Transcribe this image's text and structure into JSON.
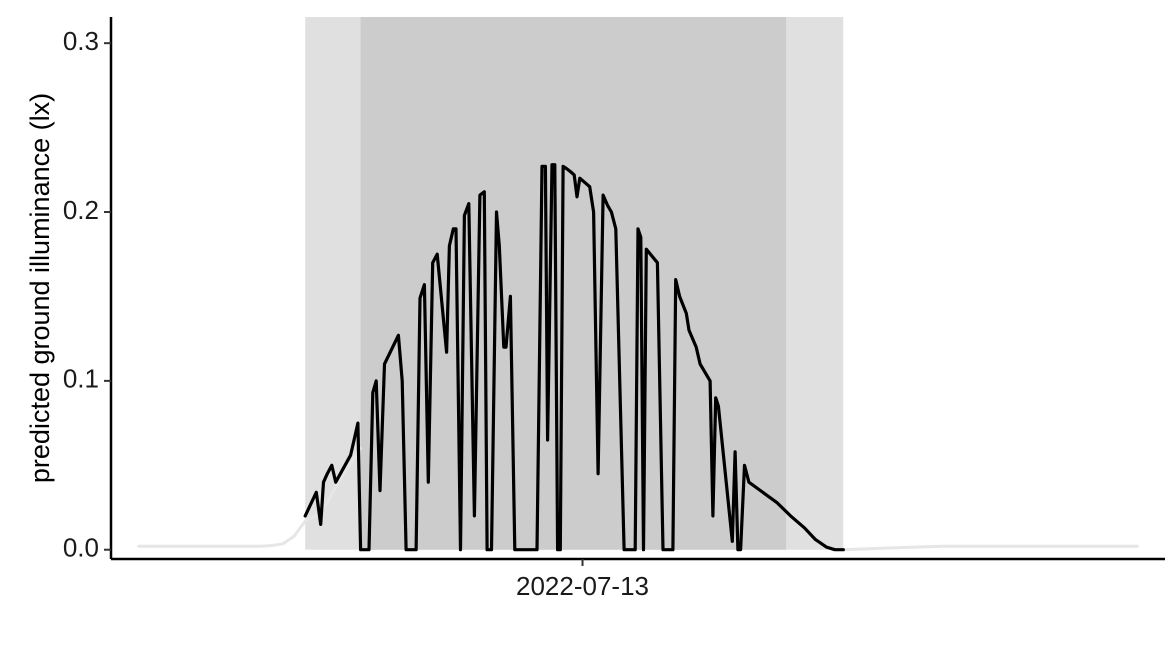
{
  "chart_data": {
    "type": "line",
    "title": "",
    "xlabel": "",
    "ylabel": "predicted ground illuminance (lx)",
    "xlim": [
      3.5,
      22.5
    ],
    "ylim": [
      -0.0055,
      0.3155
    ],
    "y_ticks": [
      0.0,
      0.1,
      0.2,
      0.3
    ],
    "y_tick_labels": [
      "0.0",
      "0.1",
      "0.2",
      "0.3"
    ],
    "x_ticks": [
      12.0
    ],
    "x_tick_labels": [
      "2022-07-13"
    ],
    "x_unit": "hour of day",
    "grid": false,
    "legend": "none",
    "colors": {
      "night_band": "#e0e0e0",
      "deep_night_band": "#cccccc",
      "main_series": "#000000",
      "outer_series": "#e6e6e6"
    },
    "shaded_regions": [
      {
        "name": "twilight",
        "x_start": 7.0,
        "x_end": 16.7
      },
      {
        "name": "night",
        "x_start": 8.0,
        "x_end": 15.67
      }
    ],
    "series": [
      {
        "name": "",
        "style": "light",
        "x": [
          4.0,
          5.0,
          6.0,
          6.2,
          6.4,
          6.6,
          6.8,
          7.0,
          7.2,
          7.4,
          7.6,
          7.8,
          8.0
        ],
        "values": [
          0.002,
          0.002,
          0.002,
          0.002,
          0.0025,
          0.0035,
          0.008,
          0.017,
          0.02,
          0.028,
          0.04,
          0.05,
          0.06
        ]
      },
      {
        "name": "",
        "style": "light",
        "x": [
          16.7,
          17.5,
          18.5,
          19.5,
          20.5,
          21.5,
          22.0
        ],
        "values": [
          0.0,
          0.001,
          0.002,
          0.002,
          0.002,
          0.002,
          0.002
        ]
      },
      {
        "name": "",
        "style": "main",
        "x": [
          7.0,
          7.2,
          7.28,
          7.33,
          7.4,
          7.48,
          7.55,
          7.82,
          7.95,
          8.0,
          8.07,
          8.15,
          8.22,
          8.28,
          8.35,
          8.43,
          8.68,
          8.75,
          8.82,
          8.88,
          9.0,
          9.07,
          9.15,
          9.22,
          9.3,
          9.38,
          9.55,
          9.6,
          9.67,
          9.72,
          9.8,
          9.87,
          9.95,
          10.05,
          10.15,
          10.23,
          10.28,
          10.36,
          10.45,
          10.5,
          10.58,
          10.62,
          10.7,
          10.78,
          10.83,
          10.88,
          10.92,
          10.97,
          11.05,
          11.13,
          11.18,
          11.27,
          11.33,
          11.37,
          11.45,
          11.5,
          11.55,
          11.6,
          11.65,
          11.7,
          11.78,
          11.85,
          11.9,
          11.95,
          12.13,
          12.2,
          12.28,
          12.37,
          12.45,
          12.52,
          12.6,
          12.75,
          12.95,
          13.0,
          13.05,
          13.1,
          13.15,
          13.35,
          13.45,
          13.52,
          13.58,
          13.63,
          13.68,
          13.75,
          13.87,
          13.92,
          14.05,
          14.12,
          14.3,
          14.35,
          14.4,
          14.45,
          14.7,
          14.75,
          14.8,
          14.85,
          14.92,
          15.0,
          15.07,
          15.12,
          15.18,
          15.3,
          15.37,
          15.45,
          15.5,
          15.58,
          15.68,
          15.75,
          15.8,
          15.9,
          16.0,
          16.2,
          16.4,
          16.55,
          16.65,
          16.7
        ],
        "values": [
          0.02,
          0.034,
          0.015,
          0.04,
          0.045,
          0.05,
          0.04,
          0.056,
          0.075,
          0.0,
          0.0,
          0.0,
          0.093,
          0.1,
          0.035,
          0.11,
          0.127,
          0.1,
          0.0,
          0.0,
          0.0,
          0.149,
          0.157,
          0.04,
          0.17,
          0.175,
          0.117,
          0.18,
          0.19,
          0.19,
          0.0,
          0.198,
          0.205,
          0.02,
          0.21,
          0.212,
          0.0,
          0.0,
          0.2,
          0.18,
          0.12,
          0.12,
          0.15,
          0.0,
          0.0,
          0.0,
          0.0,
          0.0,
          0.0,
          0.0,
          0.0,
          0.227,
          0.227,
          0.065,
          0.228,
          0.228,
          0.0,
          0.0,
          0.227,
          0.226,
          0.224,
          0.222,
          0.209,
          0.22,
          0.215,
          0.2,
          0.045,
          0.21,
          0.204,
          0.2,
          0.19,
          0.0,
          0.0,
          0.19,
          0.185,
          0.0,
          0.178,
          0.17,
          0.0,
          0.0,
          0.0,
          0.0,
          0.16,
          0.15,
          0.14,
          0.13,
          0.12,
          0.11,
          0.1,
          0.02,
          0.09,
          0.085,
          0.005,
          0.058,
          0.0,
          0.0,
          0.05,
          0.045,
          0.035,
          0.0,
          0.0,
          0.0,
          0.0,
          0.0,
          0.0,
          0.0,
          0.0,
          0.0,
          0.0,
          0.0,
          0.0,
          0.0,
          0.0,
          0.0,
          0.0,
          0.0
        ],
        "overrides": [
          [
            15.0,
            0.04
          ],
          [
            15.5,
            0.028
          ],
          [
            15.75,
            0.02
          ],
          [
            16.0,
            0.013
          ],
          [
            16.2,
            0.006
          ],
          [
            16.4,
            0.0015
          ]
        ]
      }
    ]
  }
}
